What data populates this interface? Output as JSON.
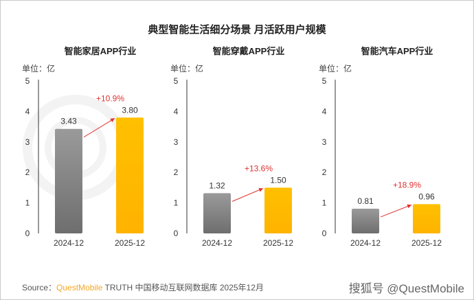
{
  "chart_data": [
    {
      "type": "bar",
      "title": "智能家居APP行业",
      "unit": "单位：亿",
      "categories": [
        "2024-12",
        "2025-12"
      ],
      "values": [
        3.43,
        3.8
      ],
      "value_labels": [
        "3.43",
        "3.80"
      ],
      "growth": "+10.9%",
      "ylim": [
        0,
        5
      ],
      "yticks": [
        "0",
        "1",
        "2",
        "3",
        "4",
        "5"
      ]
    },
    {
      "type": "bar",
      "title": "智能穿戴APP行业",
      "unit": "单位：亿",
      "categories": [
        "2024-12",
        "2025-12"
      ],
      "values": [
        1.32,
        1.5
      ],
      "value_labels": [
        "1.32",
        "1.50"
      ],
      "growth": "+13.6%",
      "ylim": [
        0,
        5
      ],
      "yticks": [
        "0",
        "1",
        "2",
        "3",
        "4",
        "5"
      ]
    },
    {
      "type": "bar",
      "title": "智能汽车APP行业",
      "unit": "单位：亿",
      "categories": [
        "2024-12",
        "2025-12"
      ],
      "values": [
        0.81,
        0.96
      ],
      "value_labels": [
        "0.81",
        "0.96"
      ],
      "growth": "+18.9%",
      "ylim": [
        0,
        5
      ],
      "yticks": [
        "0",
        "1",
        "2",
        "3",
        "4",
        "5"
      ]
    }
  ],
  "title": "典型智能生活细分场景 月活跃用户规模",
  "background_watermark": "QUEST MOBILE",
  "source": {
    "label": "Source：",
    "brand": "QuestMobile",
    "text": "TRUTH 中国移动互联网数据库 2025年12月"
  },
  "watermark": "搜狐号 @QuestMobile",
  "colors": {
    "gray": "#7f7f7f",
    "yellow": "#ffc000",
    "growth": "#e03030",
    "axis": "#333333"
  }
}
